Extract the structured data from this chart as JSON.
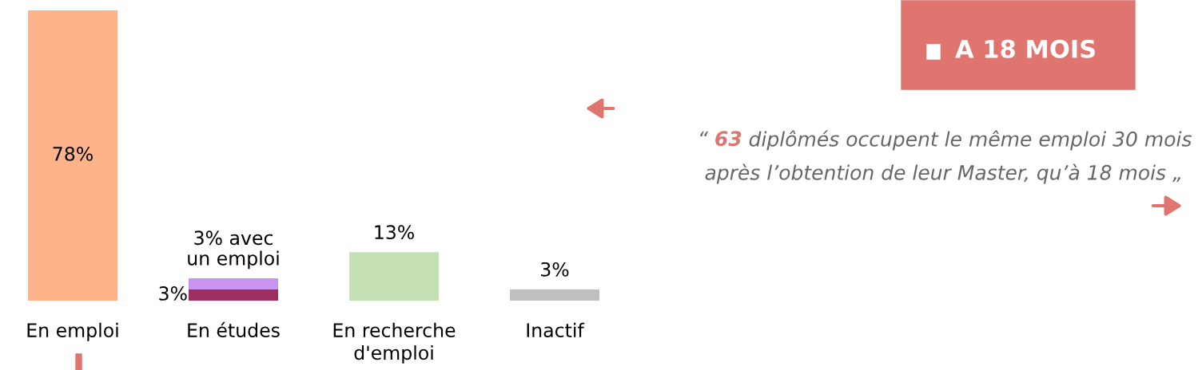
{
  "chart_data": {
    "type": "bar",
    "stacked": true,
    "categories": [
      "En emploi",
      "En études",
      "En recherche\nd'emploi",
      "Inactif"
    ],
    "series": [
      {
        "colors": [
          "#ffb38a",
          "#9b2f5f",
          "#c5e0b4",
          "#bfbfbf"
        ],
        "values": [
          78,
          3,
          13,
          3
        ],
        "value_labels": [
          "78%",
          "3%",
          "13%",
          "3%"
        ]
      },
      {
        "color": "#c993f2",
        "values": [
          null,
          3,
          null,
          null
        ],
        "value_labels": [
          null,
          "3% avec\nun emploi",
          null,
          null
        ]
      }
    ],
    "annotations": [
      "A 18 MOIS",
      "“ 63 diplômés occupent le même emploi 30 mois\naprès l’obtention de leur Master, qu’à 18 mois „"
    ],
    "grid": false
  }
}
